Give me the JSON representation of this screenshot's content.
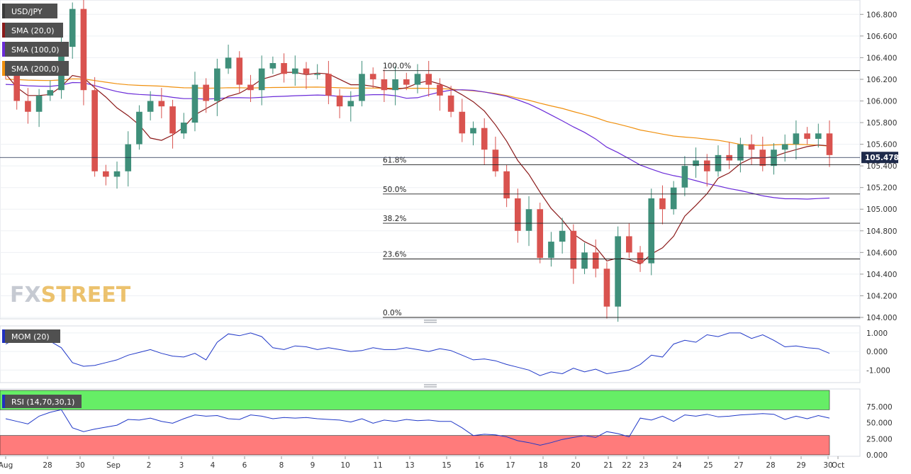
{
  "chart_data": [
    {
      "type": "candlestick",
      "symbol": "USD/JPY",
      "ylim": [
        104.0,
        106.9
      ],
      "y_ticks": [
        "106.800",
        "106.600",
        "106.400",
        "106.200",
        "106.000",
        "105.800",
        "105.600",
        "105.400",
        "105.200",
        "105.000",
        "104.800",
        "104.600",
        "104.400",
        "104.200",
        "104.000"
      ],
      "x_ticks": [
        "Aug",
        "28",
        "30",
        "Sep",
        "2",
        "3",
        "4",
        "6",
        "8",
        "9",
        "10",
        "11",
        "13",
        "15",
        "16",
        "17",
        "18",
        "20",
        "21",
        "22",
        "23",
        "24",
        "25",
        "27",
        "28",
        "29",
        "30",
        "Oct"
      ],
      "legend": [
        {
          "label": "USD/JPY",
          "color": "#3a3a3a"
        },
        {
          "label": "SMA (20,0)",
          "color": "#8b1a1a"
        },
        {
          "label": "SMA (100,0)",
          "color": "#6a2bd8"
        },
        {
          "label": "SMA (200,0)",
          "color": "#f0900e"
        }
      ],
      "last_price": "105.478",
      "colors": {
        "up": "#3f8f7a",
        "down": "#d9534f",
        "sma20": "#8b1a1a",
        "sma100": "#6a2bd8",
        "sma200": "#f0900e"
      },
      "fibonacci": [
        {
          "label": "100.0%",
          "value": 106.28
        },
        {
          "label": "61.8%",
          "value": 105.41
        },
        {
          "label": "50.0%",
          "value": 105.14
        },
        {
          "label": "38.2%",
          "value": 104.87
        },
        {
          "label": "23.6%",
          "value": 104.54
        },
        {
          "label": "0.0%",
          "value": 104.0
        }
      ],
      "candles": [
        [
          106.3,
          106.25
        ],
        [
          106.25,
          106.0
        ],
        [
          106.0,
          105.9
        ],
        [
          105.9,
          106.05
        ],
        [
          106.05,
          106.1
        ],
        [
          106.1,
          106.5
        ],
        [
          106.5,
          106.85
        ],
        [
          106.85,
          106.1
        ],
        [
          106.1,
          105.35
        ],
        [
          105.35,
          105.3
        ],
        [
          105.3,
          105.35
        ],
        [
          105.35,
          105.6
        ],
        [
          105.6,
          105.9
        ],
        [
          105.9,
          106.0
        ],
        [
          106.0,
          105.95
        ],
        [
          105.95,
          105.7
        ],
        [
          105.7,
          105.8
        ],
        [
          105.8,
          106.15
        ],
        [
          106.15,
          106.0
        ],
        [
          106.0,
          106.3
        ],
        [
          106.3,
          106.4
        ],
        [
          106.4,
          106.15
        ],
        [
          106.15,
          106.1
        ],
        [
          106.1,
          106.3
        ],
        [
          106.3,
          106.35
        ],
        [
          106.35,
          106.25
        ],
        [
          106.25,
          106.3
        ],
        [
          106.3,
          106.25
        ],
        [
          106.25,
          106.25
        ],
        [
          106.25,
          106.05
        ],
        [
          106.05,
          105.95
        ],
        [
          105.95,
          106.0
        ],
        [
          106.0,
          106.25
        ],
        [
          106.25,
          106.2
        ],
        [
          106.2,
          106.1
        ],
        [
          106.1,
          106.2
        ],
        [
          106.2,
          106.15
        ],
        [
          106.15,
          106.25
        ],
        [
          106.25,
          106.15
        ],
        [
          106.15,
          106.05
        ],
        [
          106.05,
          105.9
        ],
        [
          105.9,
          105.7
        ],
        [
          105.7,
          105.75
        ],
        [
          105.75,
          105.55
        ],
        [
          105.55,
          105.35
        ],
        [
          105.35,
          105.1
        ],
        [
          105.1,
          104.8
        ],
        [
          104.8,
          105.0
        ],
        [
          105.0,
          104.55
        ],
        [
          104.55,
          104.7
        ],
        [
          104.7,
          104.8
        ],
        [
          104.8,
          104.45
        ],
        [
          104.45,
          104.6
        ],
        [
          104.6,
          104.45
        ],
        [
          104.45,
          104.1
        ],
        [
          104.1,
          104.75
        ],
        [
          104.75,
          104.6
        ],
        [
          104.6,
          104.5
        ],
        [
          104.5,
          105.1
        ],
        [
          105.1,
          105.0
        ],
        [
          105.0,
          105.2
        ],
        [
          105.2,
          105.4
        ],
        [
          105.4,
          105.45
        ],
        [
          105.45,
          105.35
        ],
        [
          105.35,
          105.5
        ],
        [
          105.5,
          105.45
        ],
        [
          105.45,
          105.6
        ],
        [
          105.6,
          105.55
        ],
        [
          105.55,
          105.4
        ],
        [
          105.4,
          105.55
        ],
        [
          105.55,
          105.6
        ],
        [
          105.6,
          105.7
        ],
        [
          105.7,
          105.65
        ],
        [
          105.65,
          105.7
        ],
        [
          105.7,
          105.5
        ]
      ]
    },
    {
      "type": "line",
      "label": "MOM (20)",
      "y_ticks": [
        "1.000",
        "0.000",
        "-1.000"
      ],
      "ylim": [
        -1.6,
        1.3
      ],
      "values": [
        0.4,
        0.7,
        0.9,
        0.95,
        0.55,
        0.2,
        -0.6,
        -0.8,
        -0.75,
        -0.6,
        -0.45,
        -0.2,
        -0.05,
        0.1,
        -0.1,
        -0.25,
        -0.3,
        -0.1,
        -0.45,
        0.5,
        0.95,
        0.85,
        1.0,
        0.8,
        0.2,
        0.1,
        0.3,
        0.25,
        0.1,
        0.2,
        0.1,
        0.0,
        0.05,
        0.2,
        0.1,
        0.1,
        0.2,
        0.1,
        0.0,
        0.15,
        0.05,
        -0.2,
        -0.45,
        -0.4,
        -0.5,
        -0.7,
        -0.85,
        -1.0,
        -1.3,
        -1.1,
        -1.2,
        -0.9,
        -1.1,
        -0.95,
        -1.2,
        -1.1,
        -1.0,
        -0.7,
        -0.2,
        -0.3,
        0.4,
        0.6,
        0.5,
        0.9,
        0.8,
        1.0,
        1.0,
        0.7,
        0.9,
        0.6,
        0.25,
        0.3,
        0.2,
        0.15,
        -0.1
      ]
    },
    {
      "type": "line",
      "label": "RSI (14,70,30,1)",
      "y_ticks": [
        "75.000",
        "50.000",
        "25.000",
        "0.000"
      ],
      "ylim": [
        0,
        100
      ],
      "overbought": 70,
      "oversold": 30,
      "zone_colors": {
        "overbought": "#66ee66",
        "oversold": "#ff7b7b"
      },
      "values": [
        56,
        52,
        48,
        60,
        66,
        70,
        42,
        36,
        40,
        43,
        46,
        55,
        54,
        57,
        52,
        49,
        56,
        62,
        60,
        61,
        56,
        55,
        62,
        60,
        56,
        58,
        57,
        58,
        56,
        55,
        54,
        51,
        56,
        49,
        54,
        52,
        55,
        53,
        54,
        52,
        52,
        42,
        30,
        32,
        31,
        28,
        22,
        19,
        15,
        19,
        24,
        27,
        30,
        27,
        36,
        33,
        28,
        57,
        54,
        60,
        52,
        62,
        60,
        63,
        59,
        60,
        62,
        63,
        64,
        63,
        55,
        60,
        56,
        61,
        57
      ]
    }
  ],
  "watermark": {
    "part1": "FX",
    "part2": "STREET"
  }
}
